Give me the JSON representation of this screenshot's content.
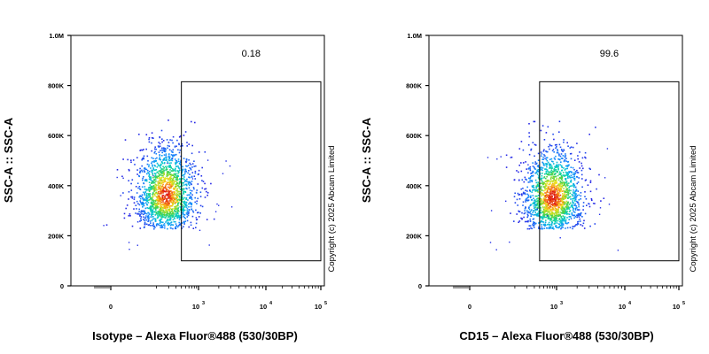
{
  "chart_data": [
    {
      "type": "scatter",
      "plot_style": "flow cytometry density dot plot",
      "xlabel": "Isotype – Alexa Fluor®488 (530/30BP)",
      "ylabel": "SSC-A :: SSC-A",
      "x_scale": "biexponential",
      "x_ticks": [
        {
          "value": 0,
          "base": "0",
          "exp": ""
        },
        {
          "value": 1000,
          "base": "10",
          "exp": "3"
        },
        {
          "value": 10000,
          "base": "10",
          "exp": "4"
        },
        {
          "value": 100000,
          "base": "10",
          "exp": "5"
        }
      ],
      "ylim": [
        0,
        1000000
      ],
      "y_ticks": [
        {
          "value": 0,
          "label": "0"
        },
        {
          "value": 200000,
          "label": "200K"
        },
        {
          "value": 400000,
          "label": "400K"
        },
        {
          "value": 600000,
          "label": "600K"
        },
        {
          "value": 800000,
          "label": "800K"
        },
        {
          "value": 1000000,
          "label": "1.0M"
        }
      ],
      "gate": {
        "x_min": 400,
        "x_max": 100000,
        "y_min": 100000,
        "y_max": 815000,
        "percent": "0.18"
      },
      "population": {
        "x_center": 170,
        "y_center": 360000,
        "y_min": 230000,
        "y_max": 680000
      },
      "copyright": "Copyright (c) 2025 Abcam Limited"
    },
    {
      "type": "scatter",
      "plot_style": "flow cytometry density dot plot",
      "xlabel": "CD15 – Alexa Fluor®488 (530/30BP)",
      "ylabel": "SSC-A :: SSC-A",
      "x_scale": "biexponential",
      "x_ticks": [
        {
          "value": 0,
          "base": "0",
          "exp": ""
        },
        {
          "value": 1000,
          "base": "10",
          "exp": "3"
        },
        {
          "value": 10000,
          "base": "10",
          "exp": "4"
        },
        {
          "value": 100000,
          "base": "10",
          "exp": "5"
        }
      ],
      "ylim": [
        0,
        1000000
      ],
      "y_ticks": [
        {
          "value": 0,
          "label": "0"
        },
        {
          "value": 200000,
          "label": "200K"
        },
        {
          "value": 400000,
          "label": "400K"
        },
        {
          "value": 600000,
          "label": "600K"
        },
        {
          "value": 800000,
          "label": "800K"
        },
        {
          "value": 1000000,
          "label": "1.0M"
        }
      ],
      "gate": {
        "x_min": 400,
        "x_max": 100000,
        "y_min": 100000,
        "y_max": 815000,
        "percent": "99.6"
      },
      "population": {
        "x_center": 800,
        "y_center": 350000,
        "y_min": 230000,
        "y_max": 660000
      },
      "copyright": "Copyright (c) 2025 Abcam Limited"
    }
  ]
}
